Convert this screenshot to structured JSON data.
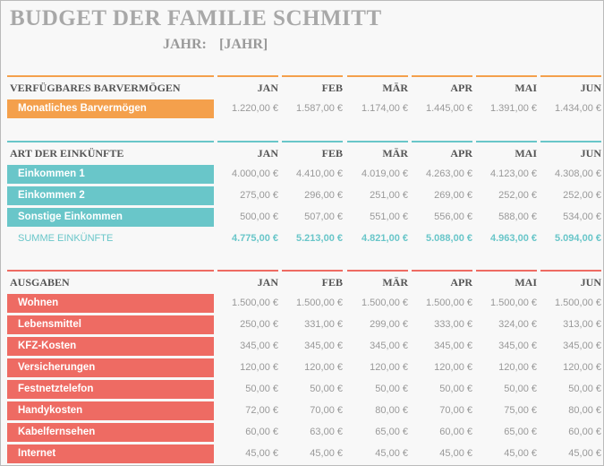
{
  "header": {
    "title": "BUDGET DER FAMILIE SCHMITT",
    "year_label": "JAHR:",
    "year_value": "[JAHR]"
  },
  "sections": [
    {
      "title": "VERFÜGBARES BARVERMÖGEN",
      "color": "#f4a04c",
      "months": [
        "JAN",
        "FEB",
        "MÄR",
        "APR",
        "MAI",
        "JUN"
      ],
      "rows": [
        {
          "label": "Monatliches Barvermögen",
          "values": [
            "1.220,00 €",
            "1.587,00 €",
            "1.174,00 €",
            "1.445,00 €",
            "1.391,00 €",
            "1.434,00 €"
          ]
        }
      ]
    },
    {
      "title": "ART DER EINKÜNFTE",
      "color": "#69c6c9",
      "months": [
        "JAN",
        "FEB",
        "MÄR",
        "APR",
        "MAI",
        "JUN"
      ],
      "rows": [
        {
          "label": "Einkommen 1",
          "values": [
            "4.000,00 €",
            "4.410,00 €",
            "4.019,00 €",
            "4.263,00 €",
            "4.123,00 €",
            "4.308,00 €"
          ]
        },
        {
          "label": "Einkommen 2",
          "values": [
            "275,00 €",
            "296,00 €",
            "251,00 €",
            "269,00 €",
            "252,00 €",
            "252,00 €"
          ]
        },
        {
          "label": "Sonstige Einkommen",
          "values": [
            "500,00 €",
            "507,00 €",
            "551,00 €",
            "556,00 €",
            "588,00 €",
            "534,00 €"
          ]
        }
      ],
      "total": {
        "label": "SUMME EINKÜNFTE",
        "values": [
          "4.775,00 €",
          "5.213,00 €",
          "4.821,00 €",
          "5.088,00 €",
          "4.963,00 €",
          "5.094,00 €"
        ]
      }
    },
    {
      "title": "AUSGABEN",
      "color": "#ee6b63",
      "months": [
        "JAN",
        "FEB",
        "MÄR",
        "APR",
        "MAI",
        "JUN"
      ],
      "rows": [
        {
          "label": "Wohnen",
          "values": [
            "1.500,00 €",
            "1.500,00 €",
            "1.500,00 €",
            "1.500,00 €",
            "1.500,00 €",
            "1.500,00 €"
          ]
        },
        {
          "label": "Lebensmittel",
          "values": [
            "250,00 €",
            "331,00 €",
            "299,00 €",
            "333,00 €",
            "324,00 €",
            "313,00 €"
          ]
        },
        {
          "label": "KFZ-Kosten",
          "values": [
            "345,00 €",
            "345,00 €",
            "345,00 €",
            "345,00 €",
            "345,00 €",
            "345,00 €"
          ]
        },
        {
          "label": "Versicherungen",
          "values": [
            "120,00 €",
            "120,00 €",
            "120,00 €",
            "120,00 €",
            "120,00 €",
            "120,00 €"
          ]
        },
        {
          "label": "Festnetztelefon",
          "values": [
            "50,00 €",
            "50,00 €",
            "50,00 €",
            "50,00 €",
            "50,00 €",
            "50,00 €"
          ]
        },
        {
          "label": "Handykosten",
          "values": [
            "72,00 €",
            "70,00 €",
            "80,00 €",
            "70,00 €",
            "75,00 €",
            "80,00 €"
          ]
        },
        {
          "label": "Kabelfernsehen",
          "values": [
            "60,00 €",
            "63,00 €",
            "65,00 €",
            "60,00 €",
            "65,00 €",
            "60,00 €"
          ]
        },
        {
          "label": "Internet",
          "values": [
            "45,00 €",
            "45,00 €",
            "45,00 €",
            "45,00 €",
            "45,00 €",
            "45,00 €"
          ]
        }
      ]
    }
  ]
}
